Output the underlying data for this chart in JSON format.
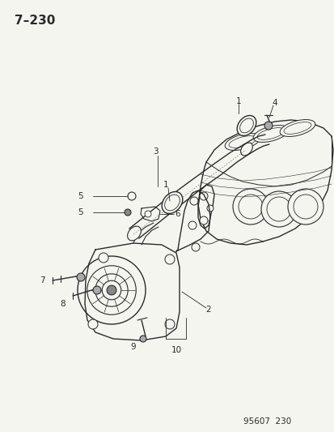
{
  "title": "7–230",
  "footer": "95607  230",
  "background_color": "#f5f5f0",
  "line_color": "#2a2a2a",
  "fig_width": 4.14,
  "fig_height": 5.33,
  "dpi": 100
}
